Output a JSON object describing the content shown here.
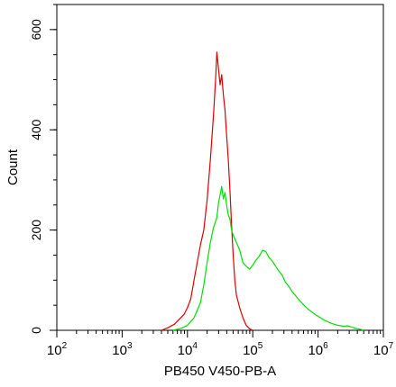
{
  "chart_data": {
    "type": "histogram",
    "title": "",
    "xlabel": "PB450 V450-PB-A",
    "ylabel": "Count",
    "x_scale": "log",
    "xlim": [
      100,
      10000000
    ],
    "ylim": [
      0,
      650
    ],
    "x_ticks": [
      {
        "value": 100,
        "base": "10",
        "exp": "2"
      },
      {
        "value": 1000,
        "base": "10",
        "exp": "3"
      },
      {
        "value": 10000,
        "base": "10",
        "exp": "4"
      },
      {
        "value": 100000,
        "base": "10",
        "exp": "5"
      },
      {
        "value": 1000000,
        "base": "10",
        "exp": "6"
      },
      {
        "value": 10000000,
        "base": "10",
        "exp": "7"
      }
    ],
    "y_ticks": [
      {
        "value": 0,
        "label": "0"
      },
      {
        "value": 200,
        "label": "200"
      },
      {
        "value": 400,
        "label": "400"
      },
      {
        "value": 600,
        "label": "600"
      }
    ],
    "grid": false,
    "legend": "none",
    "series": [
      {
        "color": "#e00000",
        "points": [
          [
            4000,
            0
          ],
          [
            5000,
            5
          ],
          [
            6300,
            12
          ],
          [
            7500,
            22
          ],
          [
            8900,
            32
          ],
          [
            10000,
            45
          ],
          [
            11200,
            62
          ],
          [
            12600,
            100
          ],
          [
            14100,
            135
          ],
          [
            15800,
            170
          ],
          [
            17800,
            200
          ],
          [
            20000,
            260
          ],
          [
            22400,
            340
          ],
          [
            25100,
            430
          ],
          [
            27000,
            500
          ],
          [
            28200,
            555
          ],
          [
            30000,
            520
          ],
          [
            31600,
            490
          ],
          [
            33500,
            510
          ],
          [
            35500,
            470
          ],
          [
            37600,
            440
          ],
          [
            39800,
            390
          ],
          [
            42200,
            340
          ],
          [
            44700,
            280
          ],
          [
            47300,
            210
          ],
          [
            50100,
            150
          ],
          [
            53100,
            100
          ],
          [
            56200,
            70
          ],
          [
            63100,
            45
          ],
          [
            70800,
            25
          ],
          [
            79400,
            10
          ],
          [
            89100,
            3
          ],
          [
            100000,
            0
          ]
        ]
      },
      {
        "color": "#00e000",
        "points": [
          [
            6000,
            0
          ],
          [
            8000,
            4
          ],
          [
            10000,
            10
          ],
          [
            12600,
            25
          ],
          [
            15800,
            55
          ],
          [
            17800,
            90
          ],
          [
            20000,
            135
          ],
          [
            22400,
            175
          ],
          [
            25100,
            205
          ],
          [
            28200,
            225
          ],
          [
            30000,
            255
          ],
          [
            31600,
            270
          ],
          [
            33500,
            287
          ],
          [
            35500,
            262
          ],
          [
            37600,
            275
          ],
          [
            39800,
            250
          ],
          [
            42200,
            230
          ],
          [
            44700,
            222
          ],
          [
            47300,
            200
          ],
          [
            50100,
            190
          ],
          [
            56200,
            175
          ],
          [
            63100,
            160
          ],
          [
            70800,
            135
          ],
          [
            79400,
            128
          ],
          [
            89100,
            122
          ],
          [
            100000,
            130
          ],
          [
            112200,
            140
          ],
          [
            125900,
            148
          ],
          [
            141300,
            160
          ],
          [
            158500,
            157
          ],
          [
            177800,
            145
          ],
          [
            199500,
            138
          ],
          [
            223900,
            128
          ],
          [
            251200,
            118
          ],
          [
            281800,
            110
          ],
          [
            316200,
            96
          ],
          [
            354800,
            88
          ],
          [
            398100,
            78
          ],
          [
            446700,
            70
          ],
          [
            501200,
            62
          ],
          [
            562300,
            55
          ],
          [
            631000,
            48
          ],
          [
            707900,
            42
          ],
          [
            794300,
            37
          ],
          [
            891300,
            32
          ],
          [
            1000000,
            28
          ],
          [
            1122000,
            24
          ],
          [
            1259000,
            20
          ],
          [
            1413000,
            17
          ],
          [
            1585000,
            14
          ],
          [
            1778000,
            12
          ],
          [
            1995000,
            10
          ],
          [
            2239000,
            9
          ],
          [
            2512000,
            8
          ],
          [
            2818000,
            9
          ],
          [
            3162000,
            7
          ],
          [
            3548000,
            5
          ],
          [
            3981000,
            3
          ],
          [
            4467000,
            2
          ],
          [
            5012000,
            0
          ]
        ]
      }
    ]
  }
}
